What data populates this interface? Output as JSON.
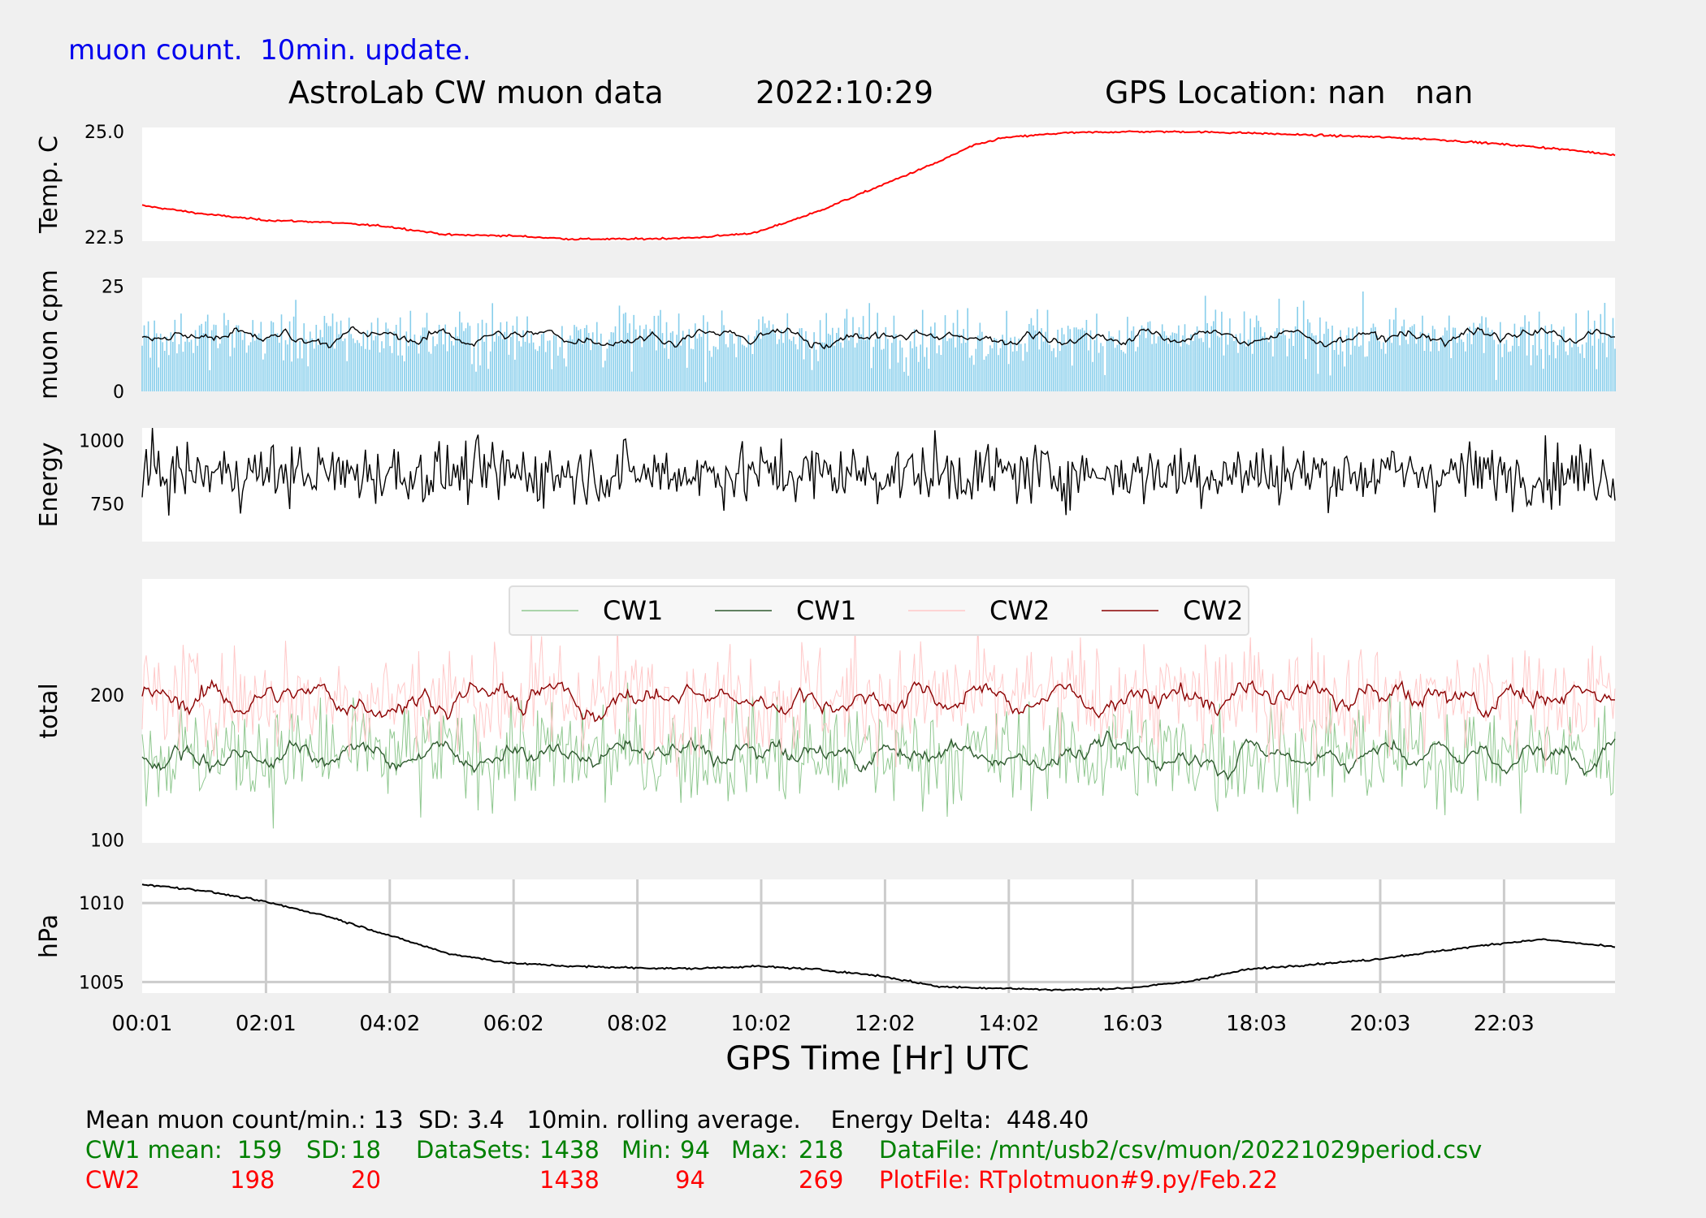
{
  "header": {
    "update_note": "muon count.  10min. update.",
    "station": "AstroLab CW muon data",
    "date": "2022:10:29",
    "gps": "GPS Location: nan   nan"
  },
  "footer": {
    "line1": "Mean muon count/min.: 13  SD: 3.4   10min. rolling average.    Energy Delta:  448.40",
    "cw1": {
      "label": "CW1 mean:",
      "mean": "159",
      "sd_label": "SD:",
      "sd": "18",
      "ds_label": "DataSets:",
      "datasets": "1438",
      "min_label": "Min:",
      "min": "94",
      "max_label": "Max:",
      "max": "218",
      "file": "DataFile: /mnt/usb2/csv/muon/20221029period.csv"
    },
    "cw2": {
      "label": "CW2",
      "mean": "198",
      "sd": "20",
      "datasets": "1438",
      "min": "94",
      "max": "269",
      "file": "PlotFile: RTplotmuon#9.py/Feb.22"
    }
  },
  "colors": {
    "background": "#f0f0f0",
    "panel": "#ffffff",
    "temp_line": "#ff0000",
    "muon_bars": "#87ceeb",
    "avg_line": "#000000",
    "cw1_raw": "#90c890",
    "cw1_avg": "#2f5a2f",
    "cw2_raw": "#ffc8c8",
    "cw2_avg": "#8b0000",
    "grid": "#cccccc"
  },
  "chart_data": {
    "type": "line",
    "xlabel": "GPS Time  [Hr] UTC",
    "x_ticks": [
      "00:01",
      "02:01",
      "04:02",
      "06:02",
      "08:02",
      "10:02",
      "12:02",
      "14:02",
      "16:03",
      "18:03",
      "20:03",
      "22:03"
    ],
    "x_range_hours": [
      0.017,
      23.98
    ],
    "panels": [
      {
        "name": "temperature",
        "ylabel": "Temp. C",
        "ylim": [
          22.4,
          25.1
        ],
        "yticks": [
          "25.0",
          "22.5"
        ],
        "ytick_values": [
          25.0,
          22.5
        ],
        "series": [
          {
            "color": "#ff0000",
            "points": [
              [
                0.0,
                23.25
              ],
              [
                1.0,
                23.05
              ],
              [
                2.0,
                22.9
              ],
              [
                3.0,
                22.85
              ],
              [
                4.0,
                22.75
              ],
              [
                5.0,
                22.55
              ],
              [
                6.0,
                22.53
              ],
              [
                7.0,
                22.45
              ],
              [
                8.0,
                22.45
              ],
              [
                9.0,
                22.48
              ],
              [
                10.0,
                22.6
              ],
              [
                11.0,
                23.1
              ],
              [
                12.0,
                23.7
              ],
              [
                13.0,
                24.3
              ],
              [
                13.5,
                24.65
              ],
              [
                14.0,
                24.85
              ],
              [
                15.0,
                24.97
              ],
              [
                16.0,
                25.0
              ],
              [
                17.0,
                25.0
              ],
              [
                18.0,
                24.97
              ],
              [
                19.0,
                24.92
              ],
              [
                20.0,
                24.88
              ],
              [
                21.0,
                24.82
              ],
              [
                22.0,
                24.72
              ],
              [
                23.0,
                24.6
              ],
              [
                24.0,
                24.45
              ]
            ]
          }
        ]
      },
      {
        "name": "muon_cpm",
        "ylabel": "muon cpm",
        "ylim": [
          0,
          27
        ],
        "yticks": [
          "25",
          "0"
        ],
        "ytick_values": [
          25,
          0
        ],
        "bars": {
          "mean": 13,
          "sd": 3.4,
          "color": "#87ceeb"
        },
        "series": [
          {
            "label": "10min. rolling average",
            "color": "#000000",
            "mean": 13,
            "sd": 1.2
          }
        ]
      },
      {
        "name": "energy",
        "ylabel": "Energy",
        "ylim": [
          600,
          1050
        ],
        "yticks": [
          "1000",
          "750"
        ],
        "ytick_values": [
          1000,
          750
        ],
        "series": [
          {
            "color": "#000000",
            "mean": 870,
            "sd": 60
          }
        ]
      },
      {
        "name": "total",
        "ylabel": "total",
        "ylim": [
          98,
          280
        ],
        "yticks": [
          "200",
          "100"
        ],
        "ytick_values": [
          200,
          100
        ],
        "legend": {
          "placement": "top-center",
          "entries": [
            "CW1",
            "CW1",
            "CW2",
            "CW2"
          ]
        },
        "series": [
          {
            "name": "CW1",
            "kind": "raw",
            "color": "#90c890",
            "mean": 159,
            "sd": 18,
            "min": 94,
            "max": 218,
            "count": 1438
          },
          {
            "name": "CW1",
            "kind": "avg",
            "color": "#2f5a2f",
            "mean": 159,
            "sd": 6
          },
          {
            "name": "CW2",
            "kind": "raw",
            "color": "#ffc8c8",
            "mean": 198,
            "sd": 20,
            "min": 94,
            "max": 269,
            "count": 1438
          },
          {
            "name": "CW2",
            "kind": "avg",
            "color": "#8b0000",
            "mean": 198,
            "sd": 7
          }
        ]
      },
      {
        "name": "pressure",
        "ylabel": "hPa",
        "ylim": [
          1004.3,
          1011.5
        ],
        "yticks": [
          "1010",
          "1005"
        ],
        "ytick_values": [
          1010,
          1005
        ],
        "grid": true,
        "series": [
          {
            "color": "#000000",
            "points": [
              [
                0.0,
                1011.2
              ],
              [
                1.0,
                1010.8
              ],
              [
                2.0,
                1010.1
              ],
              [
                3.0,
                1009.2
              ],
              [
                4.0,
                1008.0
              ],
              [
                5.0,
                1006.8
              ],
              [
                6.0,
                1006.2
              ],
              [
                7.0,
                1006.0
              ],
              [
                8.0,
                1005.9
              ],
              [
                9.0,
                1005.85
              ],
              [
                10.0,
                1006.0
              ],
              [
                11.0,
                1005.8
              ],
              [
                12.0,
                1005.4
              ],
              [
                13.0,
                1004.7
              ],
              [
                14.0,
                1004.6
              ],
              [
                15.0,
                1004.5
              ],
              [
                16.0,
                1004.6
              ],
              [
                17.0,
                1005.0
              ],
              [
                18.0,
                1005.8
              ],
              [
                19.0,
                1006.1
              ],
              [
                20.0,
                1006.4
              ],
              [
                21.0,
                1006.9
              ],
              [
                22.0,
                1007.4
              ],
              [
                22.8,
                1007.7
              ],
              [
                24.0,
                1007.2
              ]
            ]
          }
        ]
      }
    ]
  }
}
